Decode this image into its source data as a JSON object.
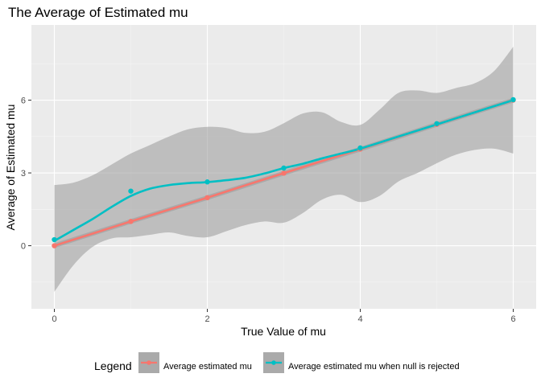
{
  "chart_data": {
    "type": "line",
    "title": "The Average of Estimated mu",
    "xlabel": "True Value of mu",
    "ylabel": "Average of Estimated mu",
    "xlim": [
      -0.3,
      6.3
    ],
    "ylim": [
      -2.6,
      9.1
    ],
    "x_ticks": [
      0,
      2,
      4,
      6
    ],
    "y_ticks": [
      0,
      3,
      6
    ],
    "grid": true,
    "legend_title": "Legend",
    "legend_position": "bottom",
    "series": [
      {
        "name": "Average estimated mu",
        "color": "#F8766D",
        "x": [
          0,
          1,
          2,
          3,
          4,
          5,
          6
        ],
        "y": [
          0.0,
          1.0,
          1.98,
          2.99,
          3.98,
          5.0,
          6.0
        ],
        "smooth": [
          [
            0,
            0.0
          ],
          [
            0.5,
            0.5
          ],
          [
            1,
            1.0
          ],
          [
            1.5,
            1.49
          ],
          [
            2,
            1.98
          ],
          [
            2.5,
            2.49
          ],
          [
            3,
            2.99
          ],
          [
            3.5,
            3.49
          ],
          [
            4,
            3.98
          ],
          [
            4.5,
            4.49
          ],
          [
            5,
            5.0
          ],
          [
            5.5,
            5.5
          ],
          [
            6,
            6.0
          ]
        ],
        "ci_upper": [
          [
            0,
            0.1
          ],
          [
            1,
            1.1
          ],
          [
            2,
            2.08
          ],
          [
            3,
            3.09
          ],
          [
            4,
            4.08
          ],
          [
            5,
            5.1
          ],
          [
            6,
            6.1
          ]
        ],
        "ci_lower": [
          [
            0,
            -0.1
          ],
          [
            1,
            0.9
          ],
          [
            2,
            1.88
          ],
          [
            3,
            2.89
          ],
          [
            4,
            3.88
          ],
          [
            5,
            4.9
          ],
          [
            6,
            5.9
          ]
        ]
      },
      {
        "name": "Average estimated mu when null is rejected",
        "color": "#00BFC4",
        "x": [
          0,
          1,
          2,
          3,
          4,
          5,
          6
        ],
        "y": [
          0.25,
          2.25,
          2.63,
          3.2,
          4.03,
          5.03,
          6.02
        ],
        "smooth": [
          [
            0,
            0.2
          ],
          [
            0.25,
            0.65
          ],
          [
            0.5,
            1.1
          ],
          [
            0.75,
            1.6
          ],
          [
            1,
            2.05
          ],
          [
            1.25,
            2.35
          ],
          [
            1.5,
            2.5
          ],
          [
            1.75,
            2.58
          ],
          [
            2,
            2.62
          ],
          [
            2.25,
            2.7
          ],
          [
            2.5,
            2.8
          ],
          [
            2.75,
            2.98
          ],
          [
            3,
            3.2
          ],
          [
            3.25,
            3.38
          ],
          [
            3.5,
            3.6
          ],
          [
            3.75,
            3.8
          ],
          [
            4,
            4.0
          ],
          [
            4.5,
            4.5
          ],
          [
            5,
            5.0
          ],
          [
            5.5,
            5.5
          ],
          [
            6,
            6.0
          ]
        ],
        "ci_upper": [
          [
            0,
            2.5
          ],
          [
            0.25,
            2.6
          ],
          [
            0.5,
            2.9
          ],
          [
            0.75,
            3.35
          ],
          [
            1,
            3.8
          ],
          [
            1.25,
            4.15
          ],
          [
            1.5,
            4.5
          ],
          [
            1.75,
            4.8
          ],
          [
            2,
            4.9
          ],
          [
            2.25,
            4.85
          ],
          [
            2.5,
            4.65
          ],
          [
            2.75,
            4.7
          ],
          [
            3,
            5.05
          ],
          [
            3.25,
            5.45
          ],
          [
            3.5,
            5.5
          ],
          [
            3.75,
            5.1
          ],
          [
            4,
            4.98
          ],
          [
            4.25,
            5.6
          ],
          [
            4.5,
            6.3
          ],
          [
            4.75,
            6.4
          ],
          [
            5,
            6.3
          ],
          [
            5.25,
            6.5
          ],
          [
            5.5,
            6.7
          ],
          [
            5.75,
            7.2
          ],
          [
            6,
            8.2
          ]
        ],
        "ci_lower": [
          [
            0,
            -1.9
          ],
          [
            0.25,
            -0.8
          ],
          [
            0.5,
            -0.05
          ],
          [
            0.75,
            0.3
          ],
          [
            1,
            0.35
          ],
          [
            1.25,
            0.45
          ],
          [
            1.5,
            0.55
          ],
          [
            1.75,
            0.4
          ],
          [
            2,
            0.35
          ],
          [
            2.25,
            0.6
          ],
          [
            2.5,
            0.85
          ],
          [
            2.75,
            1.0
          ],
          [
            3,
            0.95
          ],
          [
            3.25,
            1.35
          ],
          [
            3.5,
            1.9
          ],
          [
            3.75,
            2.1
          ],
          [
            4,
            1.8
          ],
          [
            4.25,
            2.05
          ],
          [
            4.5,
            2.65
          ],
          [
            4.75,
            3.0
          ],
          [
            5,
            3.4
          ],
          [
            5.25,
            3.75
          ],
          [
            5.5,
            3.95
          ],
          [
            5.75,
            4.0
          ],
          [
            6,
            3.8
          ]
        ]
      }
    ]
  },
  "colors": {
    "panel_bg": "#EBEBEB",
    "grid_major": "#FFFFFF",
    "ribbon": "#999999",
    "tick_text": "#4D4D4D"
  }
}
